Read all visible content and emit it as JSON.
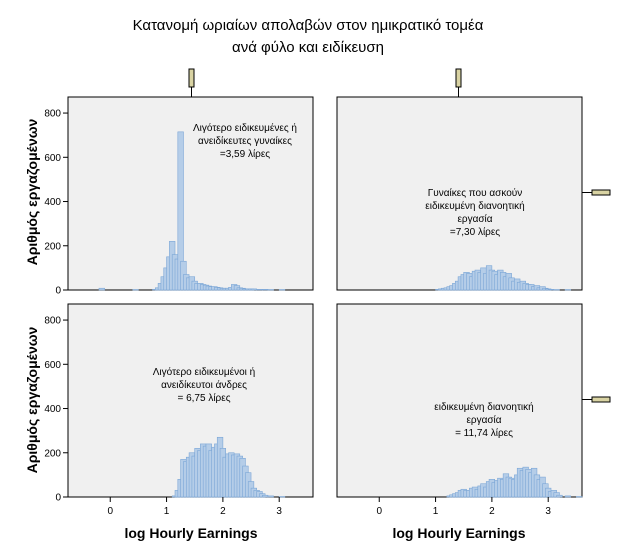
{
  "chart_data": {
    "type": "bar",
    "title_lines": [
      "Κατανομή ωριαίων απολαβών στον ημικρατικό τομέα",
      "ανά φύλο και ειδίκευση"
    ],
    "xlabel": "log Hourly Earnings",
    "ylabel": "Αριθμός εργαζομένων",
    "xlim": [
      -0.75,
      3.6
    ],
    "ylim": [
      0,
      850
    ],
    "x_ticks": [
      0,
      1,
      2,
      3
    ],
    "y_ticks": [
      0,
      200,
      400,
      600,
      800
    ],
    "bin_width": 0.1,
    "legend": "none",
    "grid": false,
    "panels": [
      {
        "annotation": [
          "Λιγότερο ειδικευμένες ή",
          "ανειδίκευτες γυναίκες",
          "=3,59 λίρες"
        ],
        "bin_starts": [
          -0.2,
          0.4,
          0.75,
          0.8,
          0.85,
          0.9,
          0.95,
          1.0,
          1.05,
          1.1,
          1.15,
          1.2,
          1.25,
          1.3,
          1.35,
          1.4,
          1.45,
          1.5,
          1.55,
          1.6,
          1.65,
          1.7,
          1.75,
          1.8,
          1.85,
          1.9,
          1.95,
          2.0,
          2.05,
          2.1,
          2.15,
          2.2,
          2.25,
          2.3,
          2.35,
          2.4,
          2.45,
          2.5,
          2.6,
          2.7,
          2.8,
          3.0
        ],
        "values": [
          8,
          2,
          3,
          10,
          30,
          60,
          100,
          150,
          220,
          160,
          140,
          715,
          130,
          70,
          55,
          60,
          40,
          30,
          30,
          25,
          22,
          18,
          15,
          15,
          12,
          10,
          8,
          8,
          8,
          12,
          25,
          20,
          10,
          8,
          5,
          5,
          5,
          5,
          3,
          3,
          2,
          2
        ]
      },
      {
        "annotation": [
          "Γυναίκες που ασκούν",
          "ειδικευμένη διανοητική",
          "εργασία",
          "=7,30 λίρες"
        ],
        "bin_starts": [
          1.0,
          1.05,
          1.1,
          1.15,
          1.2,
          1.25,
          1.3,
          1.35,
          1.4,
          1.45,
          1.5,
          1.55,
          1.6,
          1.65,
          1.7,
          1.75,
          1.8,
          1.85,
          1.9,
          1.95,
          2.0,
          2.05,
          2.1,
          2.15,
          2.2,
          2.25,
          2.3,
          2.35,
          2.4,
          2.45,
          2.5,
          2.55,
          2.6,
          2.65,
          2.7,
          2.75,
          2.8,
          2.85,
          2.9,
          2.95,
          3.0,
          3.1,
          3.3
        ],
        "values": [
          3,
          5,
          8,
          10,
          15,
          20,
          30,
          40,
          60,
          70,
          80,
          75,
          60,
          85,
          90,
          80,
          100,
          75,
          110,
          90,
          85,
          70,
          90,
          80,
          60,
          75,
          55,
          40,
          50,
          35,
          40,
          30,
          25,
          25,
          15,
          20,
          10,
          15,
          8,
          5,
          3,
          2,
          2
        ]
      },
      {
        "annotation": [
          "Λιγότερο ειδικευμένοι ή",
          "ανειδίκευτοι άνδρες",
          "= 6,75 λίρες"
        ],
        "bin_starts": [
          1.1,
          1.15,
          1.2,
          1.25,
          1.3,
          1.35,
          1.4,
          1.45,
          1.5,
          1.55,
          1.6,
          1.65,
          1.7,
          1.75,
          1.8,
          1.85,
          1.9,
          1.95,
          2.0,
          2.05,
          2.1,
          2.15,
          2.2,
          2.25,
          2.3,
          2.35,
          2.4,
          2.45,
          2.5,
          2.55,
          2.6,
          2.65,
          2.7,
          2.8,
          3.0
        ],
        "values": [
          5,
          30,
          80,
          170,
          160,
          180,
          200,
          185,
          220,
          210,
          240,
          230,
          240,
          210,
          225,
          240,
          270,
          220,
          180,
          195,
          200,
          190,
          195,
          185,
          175,
          140,
          110,
          70,
          40,
          30,
          25,
          15,
          8,
          5,
          2
        ]
      },
      {
        "annotation": [
          "ειδικευμένη διανοητική",
          "εργασία",
          "= 11,74 λίρες"
        ],
        "bin_starts": [
          1.2,
          1.25,
          1.3,
          1.35,
          1.4,
          1.45,
          1.5,
          1.55,
          1.6,
          1.65,
          1.7,
          1.75,
          1.8,
          1.85,
          1.9,
          1.95,
          2.0,
          2.05,
          2.1,
          2.15,
          2.2,
          2.25,
          2.3,
          2.35,
          2.4,
          2.45,
          2.5,
          2.55,
          2.6,
          2.65,
          2.7,
          2.75,
          2.8,
          2.85,
          2.9,
          2.95,
          3.0,
          3.05,
          3.1,
          3.15,
          3.3,
          3.5
        ],
        "values": [
          5,
          10,
          15,
          20,
          30,
          35,
          30,
          30,
          40,
          45,
          35,
          50,
          60,
          45,
          70,
          80,
          65,
          75,
          85,
          80,
          105,
          90,
          85,
          80,
          100,
          130,
          120,
          135,
          125,
          110,
          130,
          100,
          80,
          90,
          60,
          40,
          25,
          30,
          20,
          8,
          5,
          2
        ]
      }
    ]
  }
}
